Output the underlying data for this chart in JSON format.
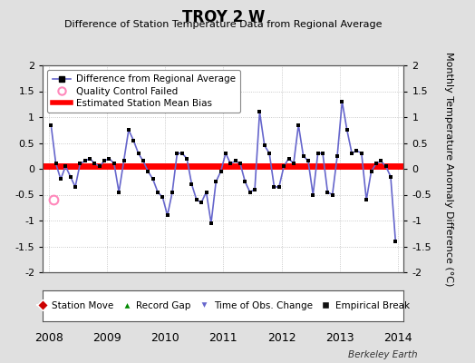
{
  "title": "TROY 2 W",
  "subtitle": "Difference of Station Temperature Data from Regional Average",
  "ylabel": "Monthly Temperature Anomaly Difference (°C)",
  "xlim": [
    2007.9,
    2014.1
  ],
  "ylim": [
    -2.0,
    2.0
  ],
  "yticks": [
    -2.0,
    -1.5,
    -1.0,
    -0.5,
    0.0,
    0.5,
    1.0,
    1.5,
    2.0
  ],
  "xticks": [
    2008,
    2009,
    2010,
    2011,
    2012,
    2013,
    2014
  ],
  "bias_y": 0.05,
  "line_color": "#6666cc",
  "dot_color": "#000000",
  "bias_color": "#ff0000",
  "bg_color": "#e0e0e0",
  "plot_bg": "#ffffff",
  "qc_failed_x": [
    2008.0833
  ],
  "qc_failed_y": [
    -0.6
  ],
  "watermark": "Berkeley Earth",
  "times": [
    2008.0417,
    2008.125,
    2008.2083,
    2008.2917,
    2008.375,
    2008.4583,
    2008.5417,
    2008.625,
    2008.7083,
    2008.7917,
    2008.875,
    2008.9583,
    2009.0417,
    2009.125,
    2009.2083,
    2009.2917,
    2009.375,
    2009.4583,
    2009.5417,
    2009.625,
    2009.7083,
    2009.7917,
    2009.875,
    2009.9583,
    2010.0417,
    2010.125,
    2010.2083,
    2010.2917,
    2010.375,
    2010.4583,
    2010.5417,
    2010.625,
    2010.7083,
    2010.7917,
    2010.875,
    2010.9583,
    2011.0417,
    2011.125,
    2011.2083,
    2011.2917,
    2011.375,
    2011.4583,
    2011.5417,
    2011.625,
    2011.7083,
    2011.7917,
    2011.875,
    2011.9583,
    2012.0417,
    2012.125,
    2012.2083,
    2012.2917,
    2012.375,
    2012.4583,
    2012.5417,
    2012.625,
    2012.7083,
    2012.7917,
    2012.875,
    2012.9583,
    2013.0417,
    2013.125,
    2013.2083,
    2013.2917,
    2013.375,
    2013.4583,
    2013.5417,
    2013.625,
    2013.7083,
    2013.7917,
    2013.875,
    2013.9583
  ],
  "values": [
    0.85,
    0.1,
    -0.2,
    0.05,
    -0.15,
    -0.35,
    0.1,
    0.15,
    0.2,
    0.1,
    0.05,
    0.15,
    0.2,
    0.1,
    -0.45,
    0.15,
    0.75,
    0.55,
    0.3,
    0.15,
    -0.05,
    -0.2,
    -0.45,
    -0.55,
    -0.9,
    -0.45,
    0.3,
    0.3,
    0.2,
    -0.3,
    -0.6,
    -0.65,
    -0.45,
    -1.05,
    -0.25,
    -0.05,
    0.3,
    0.1,
    0.15,
    0.1,
    -0.25,
    -0.45,
    -0.4,
    1.1,
    0.45,
    0.3,
    -0.35,
    -0.35,
    0.05,
    0.2,
    0.1,
    0.85,
    0.25,
    0.15,
    -0.5,
    0.3,
    0.3,
    -0.45,
    -0.5,
    0.25,
    1.3,
    0.75,
    0.3,
    0.35,
    0.3,
    -0.6,
    -0.05,
    0.1,
    0.15,
    0.05,
    -0.15,
    -1.4
  ]
}
